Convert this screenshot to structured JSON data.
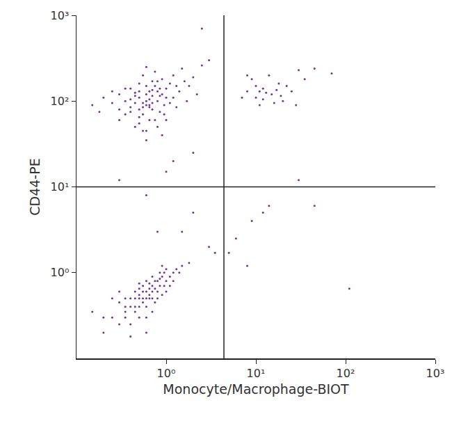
{
  "chart_data": {
    "type": "scatter",
    "x_label": "Monocyte/Macrophage-BIOT",
    "y_label": "CD44-PE",
    "log": true,
    "grid": false,
    "color": "#5e1f8c",
    "xlim": [
      0.1,
      1000
    ],
    "ylim": [
      0.1,
      1000
    ],
    "xticks": [
      {
        "value": 1,
        "label": "10⁰"
      },
      {
        "value": 10,
        "label": "10¹"
      },
      {
        "value": 100,
        "label": "10²"
      },
      {
        "value": 1000,
        "label": "10³"
      }
    ],
    "yticks": [
      {
        "value": 1,
        "label": "10⁰"
      },
      {
        "value": 10,
        "label": "10¹"
      },
      {
        "value": 100,
        "label": "10²"
      },
      {
        "value": 1000,
        "label": "10³"
      }
    ],
    "quadrant_x": 4.4,
    "quadrant_y": 10,
    "x": [
      0.6,
      0.5,
      0.7,
      0.8,
      0.55,
      0.65,
      0.45,
      0.9,
      0.75,
      0.4,
      1.0,
      0.6,
      0.5,
      0.35,
      0.85,
      1.2,
      0.7,
      0.3,
      0.95,
      0.6,
      1.1,
      0.45,
      0.8,
      0.25,
      1.4,
      0.55,
      0.65,
      0.5,
      0.9,
      0.7,
      0.4,
      1.3,
      0.2,
      0.6,
      1.6,
      0.75,
      0.35,
      1.0,
      0.5,
      0.85,
      0.3,
      1.2,
      0.65,
      0.45,
      1.8,
      0.55,
      0.8,
      0.4,
      0.95,
      0.7,
      0.15,
      0.18,
      2.0,
      2.5,
      1.5,
      0.9,
      0.6,
      1.1,
      0.3,
      0.5,
      0.75,
      0.6,
      0.45,
      1.3,
      0.55,
      0.35,
      0.8,
      1.0,
      0.65,
      0.4,
      3.0,
      2.2,
      1.7,
      0.25,
      0.5,
      0.7,
      0.6,
      0.85,
      0.55,
      0.65,
      0.6,
      0.5,
      0.7,
      0.8,
      0.45,
      0.9,
      0.55,
      0.65,
      0.4,
      1.0,
      0.35,
      0.75,
      0.5,
      0.85,
      0.3,
      1.1,
      0.6,
      0.7,
      0.45,
      0.95,
      0.25,
      1.2,
      0.55,
      0.4,
      0.8,
      0.65,
      0.5,
      1.3,
      0.3,
      0.9,
      0.6,
      0.35,
      0.75,
      1.0,
      0.5,
      0.2,
      0.7,
      1.4,
      0.45,
      0.85,
      0.55,
      0.4,
      0.65,
      1.1,
      0.3,
      0.6,
      0.9,
      0.5,
      0.8,
      0.35,
      0.15,
      0.2,
      1.5,
      1.8,
      0.4,
      0.6,
      0.25,
      0.7,
      1.2,
      0.55,
      0.45,
      0.75,
      1.0,
      0.65,
      0.5,
      0.85,
      0.6,
      0.95,
      0.35,
      0.7,
      8,
      10,
      12,
      15,
      18,
      9,
      20,
      11,
      14,
      25,
      7,
      16,
      13,
      30,
      22,
      10,
      12,
      17,
      35,
      45,
      70,
      8,
      19,
      11,
      28,
      1.5,
      2,
      1,
      0.6,
      0.8,
      3,
      3.5,
      5,
      6,
      8,
      9,
      12,
      14,
      45,
      110,
      30,
      2.5,
      1.2,
      0.3,
      2
    ],
    "y": [
      90,
      110,
      80,
      100,
      70,
      130,
      95,
      120,
      60,
      85,
      140,
      150,
      55,
      100,
      75,
      110,
      170,
      80,
      90,
      45,
      160,
      125,
      50,
      95,
      130,
      200,
      105,
      65,
      180,
      115,
      140,
      85,
      110,
      35,
      170,
      220,
      70,
      60,
      160,
      140,
      120,
      200,
      85,
      50,
      150,
      95,
      130,
      105,
      70,
      95,
      90,
      75,
      190,
      260,
      240,
      40,
      250,
      95,
      60,
      80,
      150,
      120,
      115,
      150,
      45,
      140,
      170,
      110,
      60,
      75,
      300,
      120,
      100,
      130,
      130,
      135,
      100,
      115,
      85,
      90,
      0.6,
      0.5,
      0.7,
      0.8,
      0.4,
      0.9,
      0.45,
      0.55,
      0.5,
      0.8,
      0.35,
      0.65,
      0.3,
      1.0,
      0.45,
      0.9,
      0.4,
      0.5,
      0.6,
      0.7,
      0.3,
      1.0,
      0.7,
      0.25,
      0.6,
      0.75,
      0.55,
      1.1,
      0.25,
      0.55,
      0.8,
      0.5,
      0.45,
      1.1,
      0.4,
      0.3,
      0.9,
      1.0,
      0.35,
      0.7,
      0.6,
      0.4,
      0.5,
      0.7,
      0.6,
      0.3,
      1.2,
      0.65,
      0.5,
      0.4,
      0.35,
      0.2,
      1.2,
      1.3,
      0.18,
      0.2,
      0.5,
      0.35,
      0.8,
      0.5,
      0.5,
      0.8,
      0.6,
      0.65,
      0.75,
      0.85,
      0.5,
      1.0,
      0.3,
      0.6,
      130,
      110,
      140,
      120,
      160,
      180,
      100,
      90,
      200,
      130,
      110,
      95,
      125,
      230,
      150,
      150,
      105,
      135,
      180,
      240,
      210,
      200,
      115,
      130,
      90,
      3,
      5,
      15,
      8,
      3,
      2,
      1.7,
      1.7,
      2.5,
      1.2,
      4,
      5,
      6,
      6,
      0.65,
      12,
      700,
      20,
      12,
      25
    ]
  }
}
